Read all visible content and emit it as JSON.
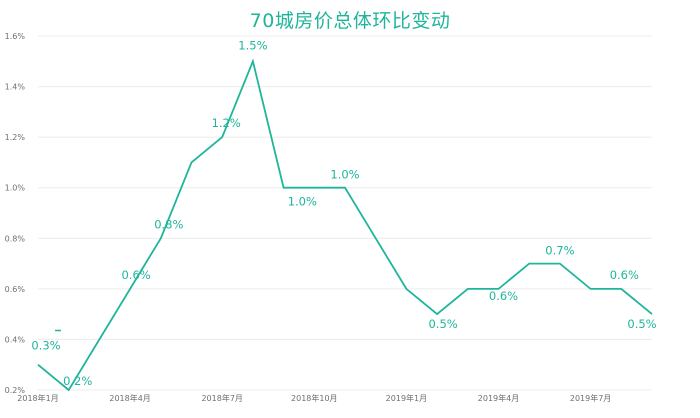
{
  "chart_data": {
    "type": "line",
    "title": "70城房价总体环比变动",
    "xlabel": "",
    "ylabel": "",
    "ylim": [
      0.2,
      1.6
    ],
    "grid": "horizontal",
    "legend": "none",
    "color": "#1fb59b",
    "x": [
      "2018年1月",
      "2018年2月",
      "2018年3月",
      "2018年4月",
      "2018年5月",
      "2018年6月",
      "2018年7月",
      "2018年8月",
      "2018年9月",
      "2018年10月",
      "2018年11月",
      "2018年12月",
      "2019年1月",
      "2019年2月",
      "2019年3月",
      "2019年4月",
      "2019年5月",
      "2019年6月",
      "2019年7月",
      "2019年8月",
      "2019年9月"
    ],
    "values": [
      0.3,
      0.2,
      0.4,
      0.6,
      0.8,
      1.1,
      1.2,
      1.5,
      1.0,
      1.0,
      1.0,
      0.8,
      0.6,
      0.5,
      0.6,
      0.6,
      0.7,
      0.7,
      0.6,
      0.6,
      0.5
    ],
    "y_ticks": [
      "0.2%",
      "0.4%",
      "0.6%",
      "0.8%",
      "1.0%",
      "1.2%",
      "1.4%",
      "1.6%"
    ],
    "x_tick_labels": [
      {
        "index": 0,
        "text": "2018年1月"
      },
      {
        "index": 3,
        "text": "2018年4月"
      },
      {
        "index": 6,
        "text": "2018年7月"
      },
      {
        "index": 9,
        "text": "2018年10月"
      },
      {
        "index": 12,
        "text": "2019年1月"
      },
      {
        "index": 15,
        "text": "2019年4月"
      },
      {
        "index": 18,
        "text": "2019年7月"
      }
    ],
    "data_labels": [
      {
        "index": 0,
        "text": "0.3%"
      },
      {
        "index": 1,
        "text": "0.2%"
      },
      {
        "index": 3,
        "text": "0.6%"
      },
      {
        "index": 4,
        "text": "0.8%"
      },
      {
        "index": 6,
        "text": "1.2%"
      },
      {
        "index": 7,
        "text": "1.5%"
      },
      {
        "index": 9,
        "text": "1.0%"
      },
      {
        "index": 10,
        "text": "1.0%"
      },
      {
        "index": 13,
        "text": "0.5%"
      },
      {
        "index": 15,
        "text": "0.6%"
      },
      {
        "index": 17,
        "text": "0.7%"
      },
      {
        "index": 19,
        "text": "0.6%"
      },
      {
        "index": 20,
        "text": "0.5%"
      }
    ]
  }
}
